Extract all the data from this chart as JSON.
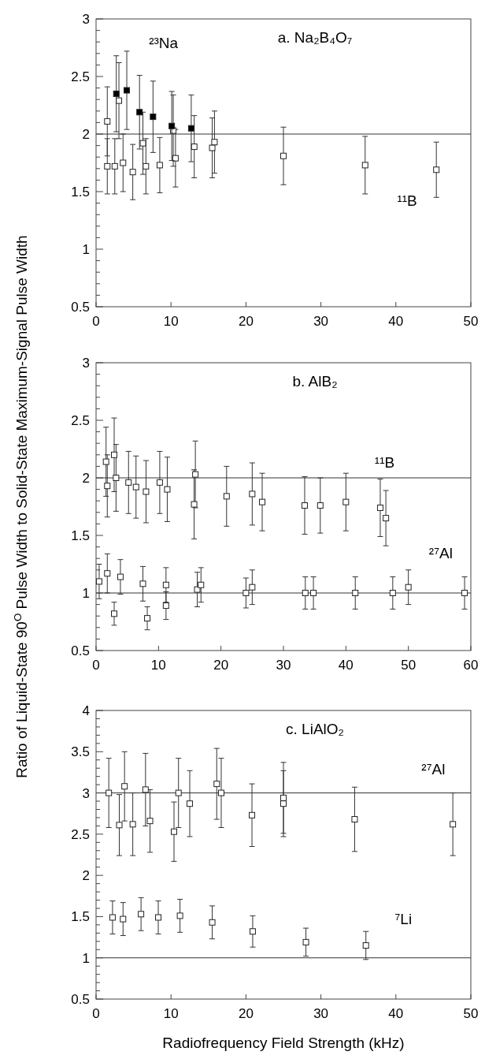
{
  "chart_data": [
    {
      "type": "scatter",
      "title": "a.  Na₂B₄O₇",
      "marker": "square",
      "xlim": [
        0,
        50
      ],
      "xticks": [
        0,
        10,
        20,
        30,
        40,
        50
      ],
      "ylim": [
        0.5,
        3
      ],
      "yticks": [
        0.5,
        {
          "value": 0.6,
          "label": null
        },
        {
          "value": 0.7,
          "label": null
        },
        {
          "value": 0.8,
          "label": null
        },
        {
          "value": 0.9,
          "label": null
        },
        1,
        {
          "value": 1.1,
          "label": null
        },
        {
          "value": 1.2,
          "label": null
        },
        {
          "value": 1.3,
          "label": null
        },
        {
          "value": 1.4,
          "label": null
        },
        1.5,
        {
          "value": 1.6,
          "label": null
        },
        {
          "value": 1.7,
          "label": null
        },
        {
          "value": 1.8,
          "label": null
        },
        {
          "value": 1.9,
          "label": null
        },
        2,
        {
          "value": 2.1,
          "label": null
        },
        {
          "value": 2.2,
          "label": null
        },
        {
          "value": 2.3,
          "label": null
        },
        {
          "value": 2.4,
          "label": null
        },
        2.5,
        {
          "value": 2.6,
          "label": null
        },
        {
          "value": 2.7,
          "label": null
        },
        {
          "value": 2.8,
          "label": null
        },
        {
          "value": 2.9,
          "label": null
        },
        3
      ],
      "ref_lines": [
        {
          "axis": "y",
          "value": 2,
          "color": "#333333"
        }
      ],
      "series": [
        {
          "name": "¹¹B",
          "color": "#ffffff",
          "x": [
            1.5,
            1.5,
            2.5,
            3.05,
            3.6,
            4.9,
            6.25,
            6.65,
            8.5,
            10.3,
            10.6,
            13.1,
            15.5,
            15.8,
            25,
            35.9,
            45.4
          ],
          "values": [
            2.11,
            1.72,
            1.72,
            2.29,
            1.75,
            1.67,
            1.92,
            1.72,
            1.73,
            2.03,
            1.79,
            1.89,
            1.88,
            1.93,
            1.81,
            1.73,
            1.69
          ],
          "errors": [
            0.3,
            0.24,
            0.24,
            0.33,
            0.25,
            0.24,
            0.27,
            0.24,
            0.24,
            0.31,
            0.25,
            0.27,
            0.26,
            0.27,
            0.25,
            0.25,
            0.24
          ]
        },
        {
          "name": "²³Na",
          "color": "#000000",
          "x": [
            2.7,
            4.1,
            5.8,
            7.6,
            10.1,
            12.7
          ],
          "values": [
            2.35,
            2.38,
            2.19,
            2.15,
            2.07,
            2.05
          ],
          "errors": [
            0.33,
            0.34,
            0.32,
            0.31,
            0.3,
            0.29
          ]
        }
      ]
    },
    {
      "type": "scatter",
      "title": "b.  AlB₂",
      "ylabel": "Ratio of Liquid-State 90$^{O}$ Pulse Width to Solid-State Maximum-Signal Pulse Width",
      "marker": "square",
      "xlim": [
        0,
        60
      ],
      "xticks": [
        0,
        10,
        20,
        30,
        40,
        50,
        60
      ],
      "ylim": [
        0.5,
        3
      ],
      "yticks": [
        0.5,
        {
          "value": 0.6,
          "label": null
        },
        {
          "value": 0.7,
          "label": null
        },
        {
          "value": 0.8,
          "label": null
        },
        {
          "value": 0.9,
          "label": null
        },
        1,
        {
          "value": 1.1,
          "label": null
        },
        {
          "value": 1.2,
          "label": null
        },
        {
          "value": 1.3,
          "label": null
        },
        {
          "value": 1.4,
          "label": null
        },
        1.5,
        {
          "value": 1.6,
          "label": null
        },
        {
          "value": 1.7,
          "label": null
        },
        {
          "value": 1.8,
          "label": null
        },
        {
          "value": 1.9,
          "label": null
        },
        2,
        {
          "value": 2.1,
          "label": null
        },
        {
          "value": 2.2,
          "label": null
        },
        {
          "value": 2.3,
          "label": null
        },
        {
          "value": 2.4,
          "label": null
        },
        2.5,
        {
          "value": 2.6,
          "label": null
        },
        {
          "value": 2.7,
          "label": null
        },
        {
          "value": 2.8,
          "label": null
        },
        {
          "value": 2.9,
          "label": null
        },
        3
      ],
      "ref_lines": [
        {
          "axis": "y",
          "value": 2,
          "color": "#333333"
        },
        {
          "axis": "y",
          "value": 1,
          "color": "#333333"
        }
      ],
      "series": [
        {
          "name": "¹¹B",
          "color": "#ffffff",
          "x": [
            1.6,
            1.8,
            2.9,
            3.2,
            5.2,
            6.4,
            8,
            10.2,
            11.4,
            15.9,
            15.7,
            20.9,
            25,
            26.6,
            33.4,
            35.9,
            40,
            45.5,
            46.4
          ],
          "values": [
            2.14,
            1.93,
            2.2,
            2,
            1.96,
            1.92,
            1.88,
            1.96,
            1.9,
            2.03,
            1.77,
            1.84,
            1.86,
            1.79,
            1.76,
            1.76,
            1.79,
            1.74,
            1.65
          ],
          "errors": [
            0.3,
            0.27,
            0.32,
            0.29,
            0.27,
            0.27,
            0.27,
            0.27,
            0.28,
            0.29,
            0.3,
            0.26,
            0.27,
            0.25,
            0.25,
            0.24,
            0.25,
            0.25,
            0.24
          ]
        },
        {
          "name": "²⁷Al",
          "color": "#ffffff",
          "x": [
            0.5,
            1.8,
            2.9,
            3.9,
            7.5,
            8.2,
            11.2,
            11.2,
            16.2,
            16.8,
            24,
            25,
            33.5,
            34.8,
            41.5,
            47.5,
            50,
            59
          ],
          "values": [
            1.1,
            1.17,
            0.82,
            1.14,
            1.08,
            0.78,
            1.07,
            0.89,
            1.03,
            1.07,
            1,
            1.05,
            1,
            1,
            1,
            1,
            1.05,
            1
          ],
          "errors": [
            0.15,
            0.17,
            0.1,
            0.15,
            0.15,
            0.1,
            0.15,
            0.12,
            0.15,
            0.15,
            0.13,
            0.15,
            0.14,
            0.14,
            0.14,
            0.14,
            0.15,
            0.14
          ]
        }
      ]
    },
    {
      "type": "scatter",
      "title": "c.  LiAlO₂",
      "xlabel": "Radiofrequency Field Strength (kHz)",
      "marker": "square",
      "xlim": [
        0,
        50
      ],
      "xticks": [
        0,
        10,
        20,
        30,
        40,
        50
      ],
      "ylim": [
        0.5,
        4
      ],
      "yticks": [
        0.5,
        {
          "value": 0.6,
          "label": null
        },
        {
          "value": 0.7,
          "label": null
        },
        {
          "value": 0.8,
          "label": null
        },
        {
          "value": 0.9,
          "label": null
        },
        1,
        {
          "value": 1.1,
          "label": null
        },
        {
          "value": 1.2,
          "label": null
        },
        {
          "value": 1.3,
          "label": null
        },
        {
          "value": 1.4,
          "label": null
        },
        1.5,
        {
          "value": 1.6,
          "label": null
        },
        {
          "value": 1.7,
          "label": null
        },
        {
          "value": 1.8,
          "label": null
        },
        {
          "value": 1.9,
          "label": null
        },
        2,
        {
          "value": 2.1,
          "label": null
        },
        {
          "value": 2.2,
          "label": null
        },
        {
          "value": 2.3,
          "label": null
        },
        {
          "value": 2.4,
          "label": null
        },
        2.5,
        {
          "value": 2.6,
          "label": null
        },
        {
          "value": 2.7,
          "label": null
        },
        {
          "value": 2.8,
          "label": null
        },
        {
          "value": 2.9,
          "label": null
        },
        3,
        {
          "value": 3.1,
          "label": null
        },
        {
          "value": 3.2,
          "label": null
        },
        {
          "value": 3.3,
          "label": null
        },
        {
          "value": 3.4,
          "label": null
        },
        3.5,
        {
          "value": 3.6,
          "label": null
        },
        {
          "value": 3.7,
          "label": null
        },
        {
          "value": 3.8,
          "label": null
        },
        {
          "value": 3.9,
          "label": null
        },
        4
      ],
      "ref_lines": [
        {
          "axis": "y",
          "value": 3,
          "color": "#333333"
        },
        {
          "axis": "y",
          "value": 1,
          "color": "#333333"
        }
      ],
      "series": [
        {
          "name": "²⁷Al",
          "color": "#ffffff",
          "x": [
            1.7,
            3.1,
            3.8,
            4.9,
            6.6,
            7.2,
            10.4,
            11,
            12.5,
            16.1,
            16.7,
            20.8,
            25,
            25,
            34.5,
            47.6
          ],
          "values": [
            3,
            2.61,
            3.08,
            2.62,
            3.04,
            2.66,
            2.53,
            3,
            2.87,
            3.11,
            3,
            2.73,
            2.94,
            2.87,
            2.68,
            2.62
          ],
          "errors": [
            0.42,
            0.37,
            0.42,
            0.38,
            0.44,
            0.38,
            0.36,
            0.42,
            0.4,
            0.43,
            0.42,
            0.38,
            0.43,
            0.4,
            0.39,
            0.38
          ]
        },
        {
          "name": "⁷Li",
          "color": "#ffffff",
          "x": [
            2.2,
            3.6,
            6,
            8.3,
            11.2,
            15.5,
            20.9,
            28,
            36
          ],
          "values": [
            1.49,
            1.47,
            1.53,
            1.49,
            1.51,
            1.43,
            1.32,
            1.19,
            1.15
          ],
          "errors": [
            0.2,
            0.2,
            0.2,
            0.2,
            0.2,
            0.2,
            0.19,
            0.17,
            0.17
          ]
        }
      ]
    }
  ]
}
